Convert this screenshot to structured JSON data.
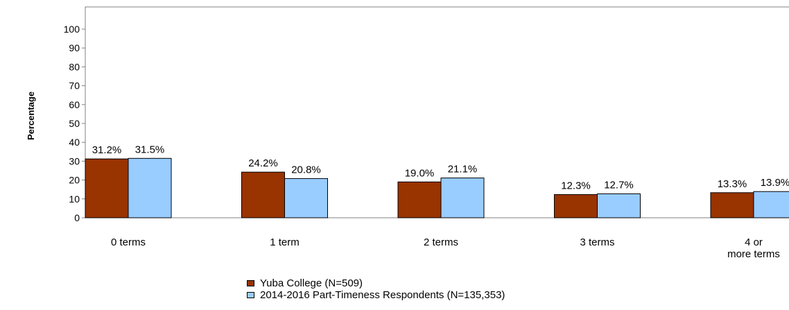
{
  "chart_data": {
    "type": "bar",
    "ylabel": "Percentage",
    "ylim": [
      0,
      110
    ],
    "yticks": [
      0,
      10,
      20,
      30,
      40,
      50,
      60,
      70,
      80,
      90,
      100
    ],
    "categories": [
      [
        "0 terms"
      ],
      [
        "1 term"
      ],
      [
        "2 terms"
      ],
      [
        "3 terms"
      ],
      [
        "4 or",
        "more terms"
      ]
    ],
    "series": [
      {
        "name": "Yuba College (N=509)",
        "color": "#993300",
        "values": [
          31.2,
          24.2,
          19.0,
          12.3,
          13.3
        ],
        "labels": [
          "31.2%",
          "24.2%",
          "19.0%",
          "12.3%",
          "13.3%"
        ]
      },
      {
        "name": "2014-2016 Part-Timeness Respondents (N=135,353)",
        "color": "#99ccff",
        "values": [
          31.5,
          20.8,
          21.1,
          12.7,
          13.9
        ],
        "labels": [
          "31.5%",
          "20.8%",
          "21.1%",
          "12.7%",
          "13.9%"
        ]
      }
    ],
    "grid": false,
    "legend_position": "bottom"
  }
}
